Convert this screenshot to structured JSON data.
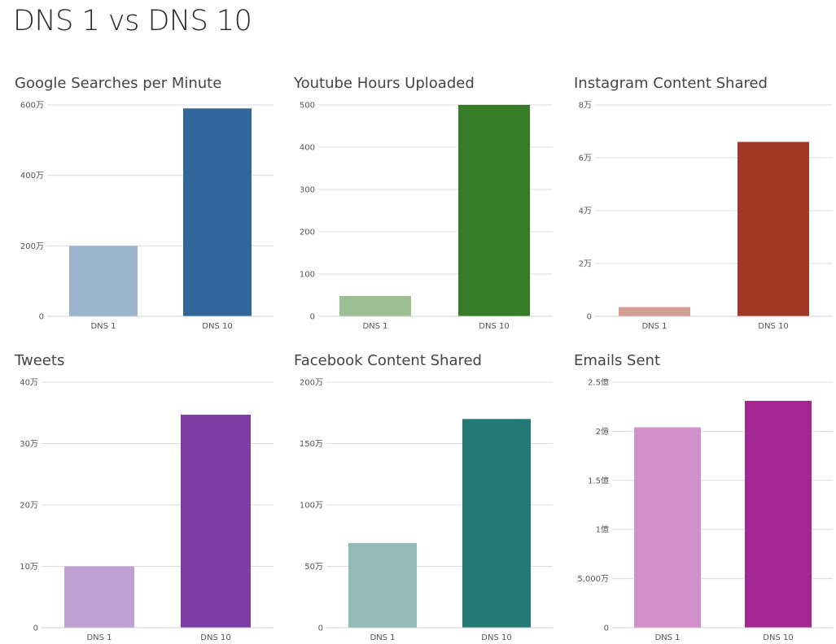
{
  "page": {
    "title": "DNS 1 vs DNS 10"
  },
  "chart_data": [
    {
      "type": "bar",
      "title": "Google Searches per Minute",
      "categories": [
        "DNS 1",
        "DNS 10"
      ],
      "values": [
        2000000,
        5900000
      ],
      "colors": [
        "#9ab4ce",
        "#306699"
      ],
      "ylim": [
        0,
        6000000
      ],
      "yticks": [
        0,
        2000000,
        4000000,
        6000000
      ],
      "ytick_labels": [
        "0",
        "200万",
        "400万",
        "600万"
      ]
    },
    {
      "type": "bar",
      "title": "Youtube Hours Uploaded",
      "categories": [
        "DNS 1",
        "DNS 10"
      ],
      "values": [
        48,
        500
      ],
      "colors": [
        "#9ebe93",
        "#367b25"
      ],
      "ylim": [
        0,
        500
      ],
      "yticks": [
        0,
        100,
        200,
        300,
        400,
        500
      ],
      "ytick_labels": [
        "0",
        "100",
        "200",
        "300",
        "400",
        "500"
      ]
    },
    {
      "type": "bar",
      "title": "Instagram Content Shared",
      "categories": [
        "DNS 1",
        "DNS 10"
      ],
      "values": [
        3500,
        66000
      ],
      "colors": [
        "#d29f92",
        "#a13826"
      ],
      "ylim": [
        0,
        80000
      ],
      "yticks": [
        0,
        20000,
        40000,
        60000,
        80000
      ],
      "ytick_labels": [
        "0",
        "2万",
        "4万",
        "6万",
        "8万"
      ]
    },
    {
      "type": "bar",
      "title": "Tweets",
      "categories": [
        "DNS 1",
        "DNS 10"
      ],
      "values": [
        100000,
        347000
      ],
      "colors": [
        "#bf9fd0",
        "#7c3ea2"
      ],
      "ylim": [
        0,
        400000
      ],
      "yticks": [
        0,
        100000,
        200000,
        300000,
        400000
      ],
      "ytick_labels": [
        "0",
        "10万",
        "20万",
        "30万",
        "40万"
      ]
    },
    {
      "type": "bar",
      "title": "Facebook Content Shared",
      "categories": [
        "DNS 1",
        "DNS 10"
      ],
      "values": [
        690000,
        1700000
      ],
      "colors": [
        "#92bab7",
        "#217874"
      ],
      "ylim": [
        0,
        2000000
      ],
      "yticks": [
        0,
        500000,
        1000000,
        1500000,
        2000000
      ],
      "ytick_labels": [
        "0",
        "50万",
        "100万",
        "150万",
        "200万"
      ]
    },
    {
      "type": "bar",
      "title": "Emails Sent",
      "categories": [
        "DNS 1",
        "DNS 10"
      ],
      "values": [
        204000000,
        231000000
      ],
      "colors": [
        "#d190c9",
        "#a42892"
      ],
      "ylim": [
        0,
        250000000
      ],
      "yticks": [
        0,
        50000000,
        100000000,
        150000000,
        200000000,
        250000000
      ],
      "ytick_labels": [
        "0",
        "5,000万",
        "1億",
        "1.5億",
        "2億",
        "2.5億"
      ]
    }
  ]
}
